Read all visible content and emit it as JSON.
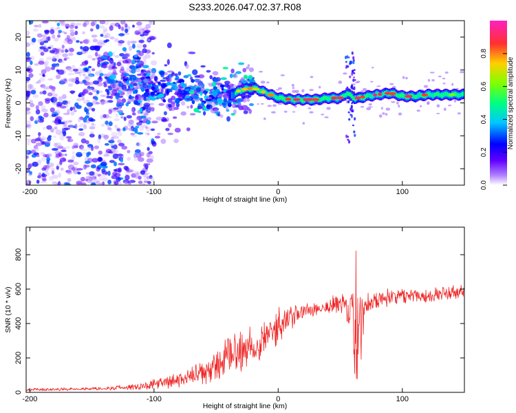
{
  "figure_title": "S233.2026.047.02.37.R08",
  "chart_data": [
    {
      "type": "heatmap",
      "title": "S233.2026.047.02.37.R08",
      "xlabel": "Height of straight line (km)",
      "ylabel": "Frequency (Hz)",
      "xlim": [
        -203,
        150
      ],
      "ylim": [
        -25,
        25
      ],
      "xticks": [
        -200,
        -100,
        0,
        100
      ],
      "xtick_labels": [
        "-200",
        "-100",
        "0",
        "100"
      ],
      "yticks": [
        -20,
        -10,
        0,
        10,
        20
      ],
      "ytick_labels": [
        "-20",
        "-10",
        "0",
        "10",
        "20"
      ],
      "colorbar": {
        "label": "Normalized spectral amplitude",
        "range": [
          0,
          1
        ],
        "ticks": [
          0.0,
          0.2,
          0.4,
          0.6,
          0.8
        ],
        "tick_labels": [
          "0.0",
          "0.2",
          "0.4",
          "0.6",
          "0.8"
        ],
        "colormap": [
          "#ffffff",
          "#6000ff",
          "#0000ff",
          "#00e0ff",
          "#00ff60",
          "#c0ff00",
          "#ffd000",
          "#ff2020",
          "#ff30c0"
        ]
      },
      "ridge_trace": {
        "x": [
          -140,
          -120,
          -100,
          -80,
          -60,
          -40,
          -30,
          -20,
          -10,
          0,
          10,
          20,
          30,
          40,
          50,
          55,
          60,
          65,
          70,
          80,
          90,
          100,
          110,
          120,
          130,
          140,
          150
        ],
        "y": [
          6,
          5,
          3.5,
          4,
          1.5,
          2,
          4,
          4.5,
          3,
          1.5,
          1,
          1,
          1,
          1.5,
          1.5,
          3,
          1.5,
          1.5,
          2,
          2.5,
          3,
          2,
          2,
          2.5,
          2.5,
          2.5,
          2.5
        ]
      },
      "noise_region": {
        "x_range": [
          -203,
          -120
        ],
        "freq_range": [
          -25,
          25
        ],
        "typical_amplitude": 0.15
      }
    },
    {
      "type": "line",
      "xlabel": "Height of straight line (km)",
      "ylabel": "SNR (10 * v/v)",
      "xlim": [
        -203,
        150
      ],
      "ylim": [
        0,
        960
      ],
      "xticks": [
        -200,
        -100,
        0,
        100
      ],
      "xtick_labels": [
        "-200",
        "-100",
        "0",
        "100"
      ],
      "yticks": [
        0,
        200,
        400,
        600,
        800
      ],
      "ytick_labels": [
        "0",
        "200",
        "400",
        "600",
        "800"
      ],
      "color": "#ee2222",
      "series": [
        {
          "name": "SNR",
          "x": [
            -203,
            -180,
            -160,
            -140,
            -120,
            -100,
            -80,
            -60,
            -50,
            -40,
            -30,
            -20,
            -10,
            0,
            10,
            20,
            30,
            40,
            50,
            55,
            60,
            62,
            64,
            66,
            70,
            80,
            90,
            100,
            110,
            120,
            130,
            140,
            150
          ],
          "mean": [
            15,
            17,
            20,
            23,
            30,
            45,
            70,
            110,
            150,
            200,
            250,
            270,
            330,
            380,
            430,
            470,
            490,
            500,
            510,
            500,
            420,
            350,
            300,
            400,
            520,
            540,
            560,
            560,
            570,
            560,
            570,
            580,
            580
          ],
          "spread": [
            10,
            10,
            10,
            12,
            20,
            35,
            50,
            80,
            110,
            150,
            160,
            150,
            130,
            120,
            90,
            60,
            60,
            60,
            80,
            100,
            260,
            420,
            460,
            300,
            80,
            60,
            60,
            50,
            50,
            50,
            50,
            50,
            50
          ]
        }
      ]
    }
  ]
}
